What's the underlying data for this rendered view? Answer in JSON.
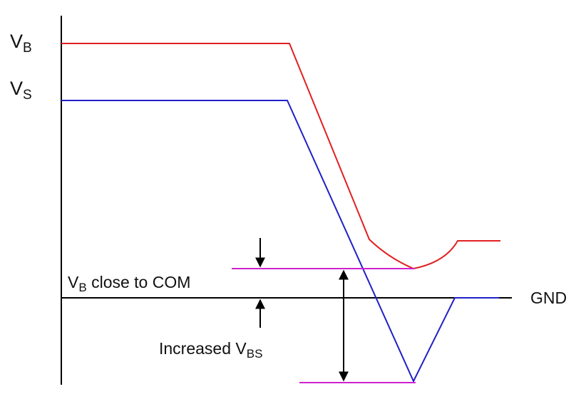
{
  "labels": {
    "vb": {
      "main": "V",
      "sub": "B"
    },
    "vs": {
      "main": "V",
      "sub": "S"
    },
    "gnd": "GND",
    "vb_close": {
      "main": "V",
      "sub": "B",
      "rest": " close to COM"
    },
    "increased_vbs": {
      "main": "Increased V",
      "sub": "BS"
    }
  },
  "colors": {
    "vb_trace": "#e02020",
    "vs_trace": "#2020c8",
    "marker": "#d020d0",
    "axis": "#000000"
  }
}
